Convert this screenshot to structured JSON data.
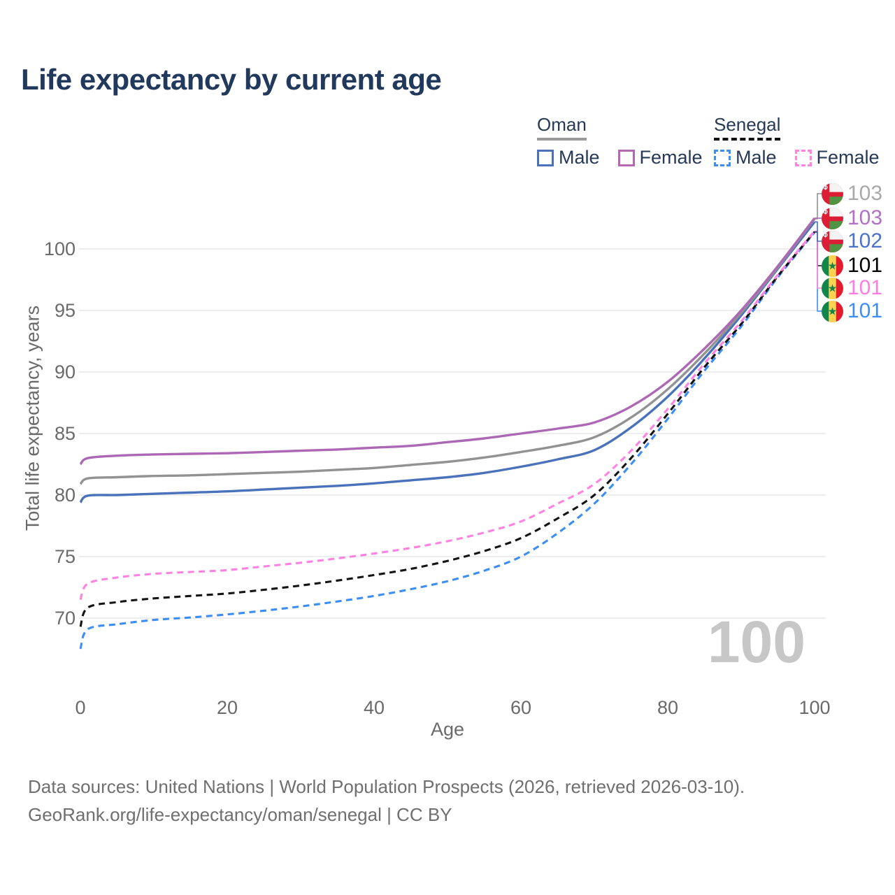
{
  "page": {
    "title": "Life expectancy by current age"
  },
  "legend": {
    "groups": [
      {
        "country": "Oman",
        "line_style": "solid",
        "underline_color": "#9a9a9a",
        "items": [
          {
            "label": "Male",
            "color": "#4a72ba"
          },
          {
            "label": "Female",
            "color": "#b36ab3"
          }
        ]
      },
      {
        "country": "Senegal",
        "line_style": "dashed",
        "underline_color": "#111111",
        "items": [
          {
            "label": "Male",
            "color": "#3c8ef5"
          },
          {
            "label": "Female",
            "color": "#ff82e3"
          }
        ]
      }
    ]
  },
  "chart_data": {
    "type": "line",
    "title": "Life expectancy by current age",
    "xlabel": "Age",
    "ylabel": "Total life expectancy, years",
    "xticks": [
      0,
      20,
      40,
      60,
      80,
      100
    ],
    "yticks": [
      70,
      75,
      80,
      85,
      90,
      95,
      100
    ],
    "xlim": [
      0,
      100
    ],
    "ylim": [
      66,
      103.5
    ],
    "grid": "horizontal",
    "age_indicator": "100",
    "series": [
      {
        "name": "Senegal Male",
        "country": "Senegal",
        "sex": "Male",
        "color": "#3c8ef5",
        "dash": true,
        "end_label": "101",
        "end_label_color": "#3c8ef5",
        "label_row": 5,
        "points": [
          [
            0,
            67.5
          ],
          [
            1,
            69.1
          ],
          [
            5,
            69.5
          ],
          [
            10,
            69.85
          ],
          [
            15,
            70.05
          ],
          [
            20,
            70.3
          ],
          [
            25,
            70.6
          ],
          [
            30,
            70.95
          ],
          [
            35,
            71.35
          ],
          [
            40,
            71.8
          ],
          [
            45,
            72.35
          ],
          [
            50,
            73.0
          ],
          [
            55,
            73.85
          ],
          [
            60,
            75.0
          ],
          [
            65,
            76.9
          ],
          [
            70,
            79.3
          ],
          [
            75,
            82.5
          ],
          [
            80,
            86.2
          ],
          [
            85,
            90.1
          ],
          [
            90,
            93.7
          ],
          [
            95,
            97.7
          ],
          [
            100,
            101.35
          ]
        ]
      },
      {
        "name": "Senegal Both sexes",
        "country": "Senegal",
        "sex": "Both",
        "color": "#141414",
        "dash": true,
        "end_label": "101",
        "end_label_color": "#000000",
        "label_row": 3,
        "points": [
          [
            0,
            69.3
          ],
          [
            1,
            70.85
          ],
          [
            5,
            71.3
          ],
          [
            10,
            71.6
          ],
          [
            15,
            71.8
          ],
          [
            20,
            72.0
          ],
          [
            25,
            72.3
          ],
          [
            30,
            72.65
          ],
          [
            35,
            73.05
          ],
          [
            40,
            73.5
          ],
          [
            45,
            74.0
          ],
          [
            50,
            74.65
          ],
          [
            55,
            75.45
          ],
          [
            60,
            76.5
          ],
          [
            65,
            78.1
          ],
          [
            70,
            80.0
          ],
          [
            75,
            83.0
          ],
          [
            80,
            86.6
          ],
          [
            85,
            90.4
          ],
          [
            90,
            93.9
          ],
          [
            95,
            97.8
          ],
          [
            100,
            101.4
          ]
        ]
      },
      {
        "name": "Senegal Female",
        "country": "Senegal",
        "sex": "Female",
        "color": "#ff82e3",
        "dash": true,
        "end_label": "101",
        "end_label_color": "#ff7ce0",
        "label_row": 4,
        "points": [
          [
            0,
            71.5
          ],
          [
            1,
            72.8
          ],
          [
            5,
            73.3
          ],
          [
            10,
            73.6
          ],
          [
            15,
            73.75
          ],
          [
            20,
            73.9
          ],
          [
            25,
            74.2
          ],
          [
            30,
            74.5
          ],
          [
            35,
            74.85
          ],
          [
            40,
            75.25
          ],
          [
            45,
            75.7
          ],
          [
            50,
            76.25
          ],
          [
            55,
            76.95
          ],
          [
            60,
            77.85
          ],
          [
            65,
            79.3
          ],
          [
            70,
            80.9
          ],
          [
            75,
            83.6
          ],
          [
            80,
            87.0
          ],
          [
            85,
            90.7
          ],
          [
            90,
            94.1
          ],
          [
            95,
            97.9
          ],
          [
            100,
            101.45
          ]
        ]
      },
      {
        "name": "Oman Male",
        "country": "Oman",
        "sex": "Male",
        "color": "#4a72ba",
        "dash": false,
        "end_label": "102",
        "end_label_color": "#4a74c8",
        "label_row": 2,
        "points": [
          [
            0,
            79.4
          ],
          [
            1,
            79.95
          ],
          [
            5,
            80.0
          ],
          [
            10,
            80.1
          ],
          [
            15,
            80.2
          ],
          [
            20,
            80.3
          ],
          [
            25,
            80.45
          ],
          [
            30,
            80.6
          ],
          [
            35,
            80.75
          ],
          [
            40,
            80.95
          ],
          [
            45,
            81.2
          ],
          [
            50,
            81.45
          ],
          [
            55,
            81.8
          ],
          [
            60,
            82.3
          ],
          [
            65,
            82.9
          ],
          [
            70,
            83.65
          ],
          [
            75,
            85.5
          ],
          [
            80,
            88.0
          ],
          [
            85,
            91.1
          ],
          [
            90,
            94.6
          ],
          [
            95,
            98.4
          ],
          [
            100,
            102.2
          ]
        ]
      },
      {
        "name": "Oman Both sexes",
        "country": "Oman",
        "sex": "Both",
        "color": "#929292",
        "dash": false,
        "end_label": "103",
        "end_label_color": "#a9a9a9",
        "label_row": 0,
        "points": [
          [
            0,
            80.9
          ],
          [
            1,
            81.35
          ],
          [
            5,
            81.45
          ],
          [
            10,
            81.55
          ],
          [
            15,
            81.6
          ],
          [
            20,
            81.7
          ],
          [
            25,
            81.8
          ],
          [
            30,
            81.9
          ],
          [
            35,
            82.05
          ],
          [
            40,
            82.2
          ],
          [
            45,
            82.45
          ],
          [
            50,
            82.7
          ],
          [
            55,
            83.05
          ],
          [
            60,
            83.5
          ],
          [
            65,
            84.0
          ],
          [
            70,
            84.7
          ],
          [
            75,
            86.3
          ],
          [
            80,
            88.6
          ],
          [
            85,
            91.5
          ],
          [
            90,
            94.8
          ],
          [
            95,
            98.5
          ],
          [
            100,
            102.45
          ]
        ]
      },
      {
        "name": "Oman Female",
        "country": "Oman",
        "sex": "Female",
        "color": "#ac68b4",
        "dash": false,
        "end_label": "103",
        "end_label_color": "#b26fc4",
        "label_row": 1,
        "points": [
          [
            0,
            82.5
          ],
          [
            1,
            83.0
          ],
          [
            5,
            83.2
          ],
          [
            10,
            83.3
          ],
          [
            15,
            83.35
          ],
          [
            20,
            83.4
          ],
          [
            25,
            83.5
          ],
          [
            30,
            83.6
          ],
          [
            35,
            83.7
          ],
          [
            40,
            83.85
          ],
          [
            45,
            84.0
          ],
          [
            50,
            84.3
          ],
          [
            55,
            84.6
          ],
          [
            60,
            85.0
          ],
          [
            65,
            85.4
          ],
          [
            70,
            85.9
          ],
          [
            75,
            87.2
          ],
          [
            80,
            89.2
          ],
          [
            85,
            91.9
          ],
          [
            90,
            95.0
          ],
          [
            95,
            98.6
          ],
          [
            100,
            102.5
          ]
        ]
      }
    ]
  },
  "flags": {
    "oman": {
      "red": "#db1e36",
      "white": "#f4f4f4",
      "green": "#4f9343"
    },
    "senegal": {
      "green": "#11864a",
      "yellow": "#fdd24f",
      "red": "#e31b2c",
      "star": "#11864a"
    }
  },
  "footer": {
    "line1": "Data sources: United Nations | World Population Prospects (2026, retrieved 2026-03-10).",
    "line2": "GeoRank.org/life-expectancy/oman/senegal | CC BY"
  }
}
